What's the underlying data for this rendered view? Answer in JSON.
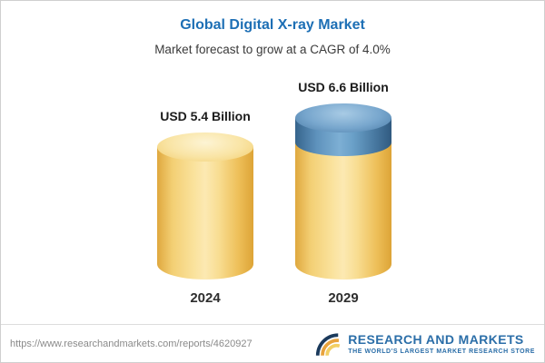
{
  "chart_data": {
    "type": "bar",
    "title": "Global Digital X-ray Market",
    "subtitle": "Market forecast to grow at a CAGR of 4.0%",
    "cagr": "4.0%",
    "unit": "USD Billion",
    "categories": [
      "2024",
      "2029"
    ],
    "values": [
      5.4,
      6.6
    ],
    "bars": [
      {
        "year": "2024",
        "value": 5.4,
        "label": "USD 5.4 Billion",
        "color": "#f6d77d"
      },
      {
        "year": "2029",
        "value": 6.6,
        "label": "USD 6.6 Billion",
        "color": "#f6d77d",
        "growth_from": 5.4,
        "growth_segment_color": "#5788b3"
      }
    ],
    "legend": null,
    "ylim": [
      0,
      7
    ],
    "grid": false
  },
  "footer": {
    "url": "https://www.researchandmarkets.com/reports/4620927",
    "logo_name": "RESEARCH AND MARKETS",
    "logo_tagline": "THE WORLD'S LARGEST MARKET RESEARCH STORE"
  },
  "colors": {
    "title_blue": "#1d6fb5",
    "bar_yellow": "#f6d77d",
    "bar_blue": "#5788b3",
    "logo_blue": "#2b6ea8",
    "logo_orange": "#e8a33d",
    "logo_yellow": "#f2cf63",
    "logo_navy": "#1b3a5c"
  }
}
